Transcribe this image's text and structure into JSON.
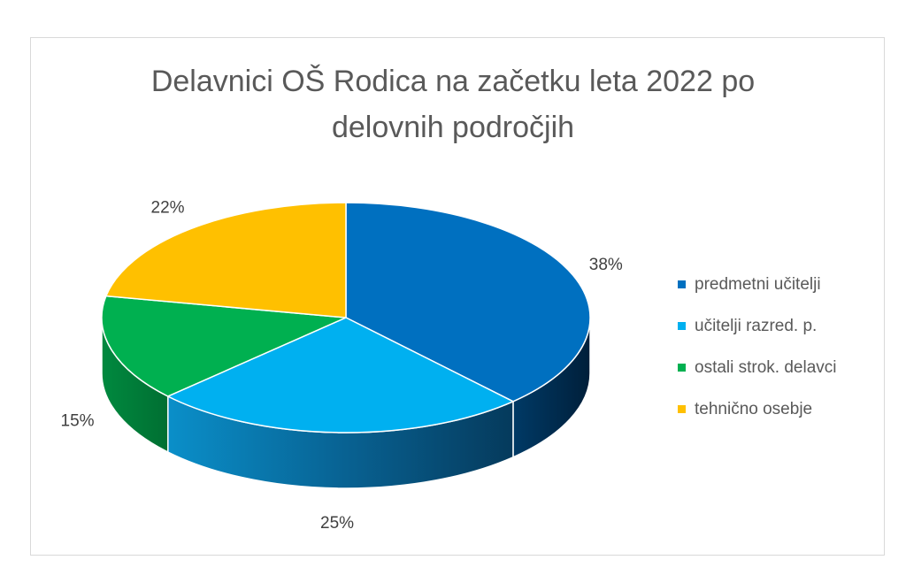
{
  "chart_data": {
    "type": "pie",
    "title_lines": [
      "Delavnici OŠ Rodica na začetku leta 2022 po",
      "delovnih področjih"
    ],
    "categories": [
      "predmetni učitelji",
      "učitelji razred. p.",
      "ostali strok. delavci",
      "tehnično osebje"
    ],
    "values": [
      38,
      25,
      15,
      22
    ],
    "labels": [
      "38%",
      "25%",
      "15%",
      "22%"
    ],
    "colors": [
      "#0070C0",
      "#00B0F0",
      "#00B050",
      "#FFC000"
    ],
    "legend_position": "right",
    "style": "3d"
  }
}
